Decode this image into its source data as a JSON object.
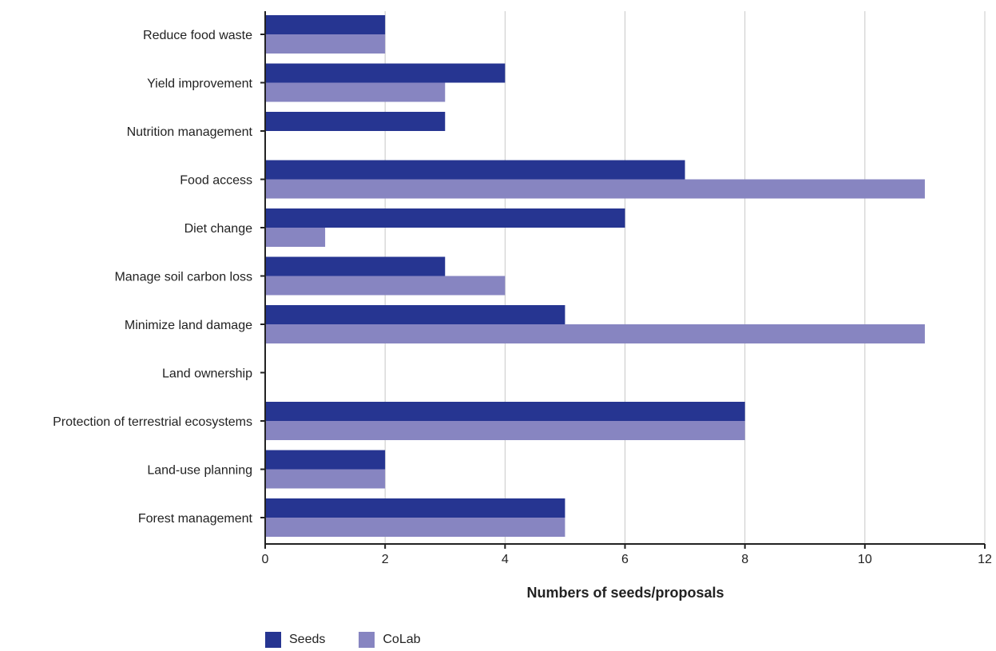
{
  "chart_data": {
    "type": "bar",
    "orientation": "horizontal",
    "categories": [
      "Reduce food waste",
      "Yield improvement",
      "Nutrition management",
      "Food access",
      "Diet change",
      "Manage soil carbon loss",
      "Minimize land damage",
      "Land ownership",
      "Protection of terrestrial ecosystems",
      "Land-use planning",
      "Forest management"
    ],
    "series": [
      {
        "name": "Seeds",
        "color": "#263591",
        "values": [
          2,
          4,
          3,
          7,
          6,
          3,
          5,
          0,
          8,
          2,
          5
        ]
      },
      {
        "name": "CoLab",
        "color": "#8785c1",
        "values": [
          2,
          3,
          0,
          11,
          1,
          4,
          11,
          0,
          8,
          2,
          5
        ]
      }
    ],
    "xlabel": "Numbers of seeds/proposals",
    "ylabel": "",
    "xlim": [
      0,
      12
    ],
    "xticks": [
      0,
      2,
      4,
      6,
      8,
      10,
      12
    ],
    "grid": "vertical",
    "legend_position": "bottom-left"
  }
}
